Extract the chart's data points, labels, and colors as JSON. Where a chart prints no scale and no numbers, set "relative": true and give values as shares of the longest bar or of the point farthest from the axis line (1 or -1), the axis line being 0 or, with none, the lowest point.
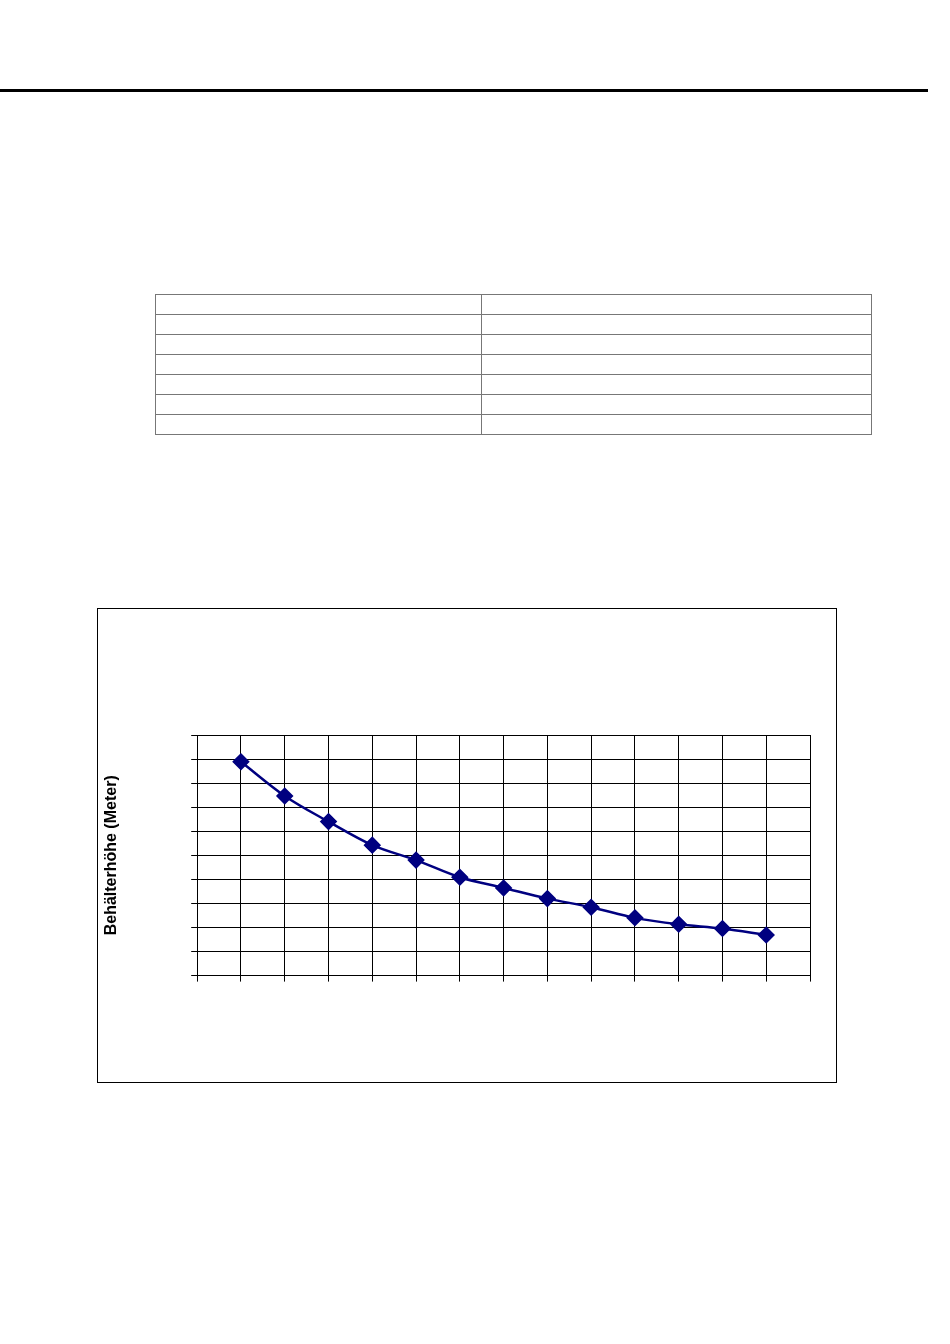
{
  "chart_data": {
    "type": "line",
    "ylabel": "Behälterhöhe (Meter)",
    "categories": [
      null,
      null,
      null,
      null,
      null,
      null,
      null,
      null,
      null,
      null,
      null,
      null,
      null,
      null,
      null
    ],
    "series": [
      {
        "color": "#000080",
        "values": [
          null,
          1,
          0.84,
          0.72,
          0.61,
          0.54,
          0.46,
          0.41,
          0.36,
          0.32,
          0.27,
          0.24,
          0.22,
          0.19,
          null
        ]
      }
    ],
    "relative": true,
    "grid": true,
    "legend": false,
    "marker": "diamond",
    "line_style": "solid"
  }
}
